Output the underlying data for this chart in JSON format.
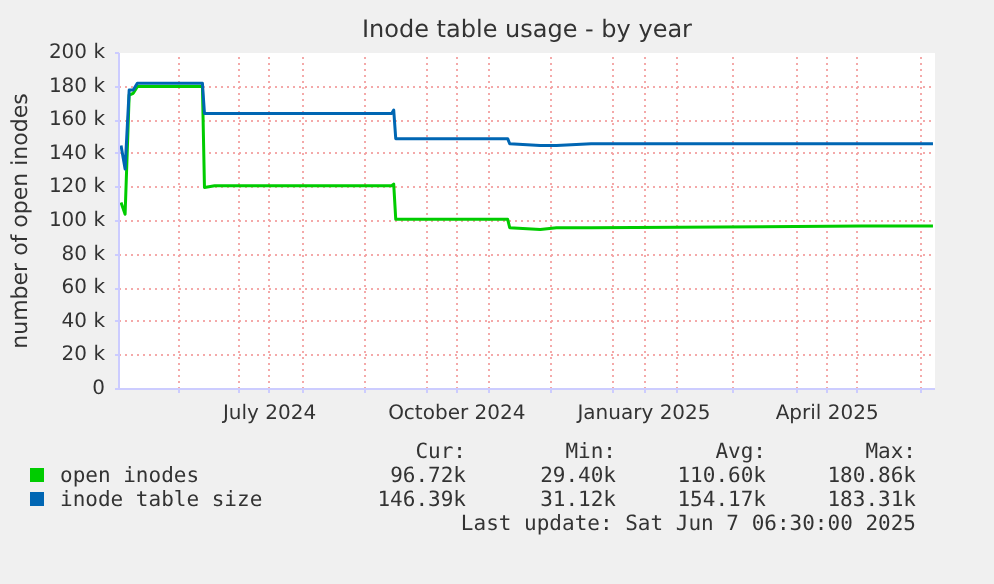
{
  "chart_data": {
    "type": "line",
    "title": "Inode table usage - by year",
    "ylabel": "number of open inodes",
    "x": [
      "2024-05-04",
      "2024-05-06",
      "2024-05-08",
      "2024-05-10",
      "2024-05-12",
      "2024-06-13",
      "2024-06-14",
      "2024-06-19",
      "2024-09-14",
      "2024-09-15",
      "2024-09-16",
      "2024-11-10",
      "2024-11-11",
      "2024-11-26",
      "2024-12-04",
      "2024-12-21",
      "2025-05-03",
      "2025-06-07"
    ],
    "series": [
      {
        "name": "open inodes",
        "color": "#00cc00",
        "values": [
          111000,
          104000,
          175000,
          176000,
          180000,
          180000,
          120000,
          121000,
          121000,
          122000,
          101000,
          101000,
          96000,
          95000,
          96000,
          96000,
          97000,
          97000
        ]
      },
      {
        "name": "inode table size",
        "color": "#0066b3",
        "values": [
          145000,
          131000,
          178000,
          178000,
          182000,
          182000,
          164000,
          164000,
          164000,
          166000,
          149000,
          149000,
          146000,
          145000,
          145000,
          146000,
          146000,
          146000
        ]
      }
    ],
    "xlim": [
      "2024-05-03",
      "2025-06-08"
    ],
    "xticks": [
      {
        "value": "2024-06-01",
        "label": null
      },
      {
        "value": "2024-07-01",
        "label": null
      },
      {
        "value": "2024-07-16",
        "label": "July 2024"
      },
      {
        "value": "2024-08-01",
        "label": null
      },
      {
        "value": "2024-09-01",
        "label": null
      },
      {
        "value": "2024-10-01",
        "label": null
      },
      {
        "value": "2024-10-16",
        "label": "October 2024"
      },
      {
        "value": "2024-11-01",
        "label": null
      },
      {
        "value": "2024-12-01",
        "label": null
      },
      {
        "value": "2025-01-01",
        "label": null
      },
      {
        "value": "2025-01-16",
        "label": "January 2025"
      },
      {
        "value": "2025-02-01",
        "label": null
      },
      {
        "value": "2025-03-01",
        "label": null
      },
      {
        "value": "2025-04-01",
        "label": null
      },
      {
        "value": "2025-04-16",
        "label": "April 2025"
      },
      {
        "value": "2025-05-01",
        "label": null
      },
      {
        "value": "2025-06-01",
        "label": null
      }
    ],
    "ylim": [
      0,
      200000
    ],
    "yticks": [
      {
        "value": 0,
        "label": "0"
      },
      {
        "value": 20000,
        "label": "20 k"
      },
      {
        "value": 40000,
        "label": "40 k"
      },
      {
        "value": 60000,
        "label": "60 k"
      },
      {
        "value": 80000,
        "label": "80 k"
      },
      {
        "value": 100000,
        "label": "100 k"
      },
      {
        "value": 120000,
        "label": "120 k"
      },
      {
        "value": 140000,
        "label": "140 k"
      },
      {
        "value": 160000,
        "label": "160 k"
      },
      {
        "value": 180000,
        "label": "180 k"
      },
      {
        "value": 200000,
        "label": "200 k"
      }
    ],
    "grid": true,
    "legend": "bottom",
    "marker": "none",
    "line_style": "solid",
    "annotations": [
      "Cur:",
      "Min:",
      "Avg:",
      "Max:",
      "96.72k",
      "29.40k",
      "110.60k",
      "180.86k",
      "146.39k",
      "31.12k",
      "154.17k",
      "183.31k",
      "Last update: Sat Jun  7 06:30:00 2025"
    ]
  }
}
